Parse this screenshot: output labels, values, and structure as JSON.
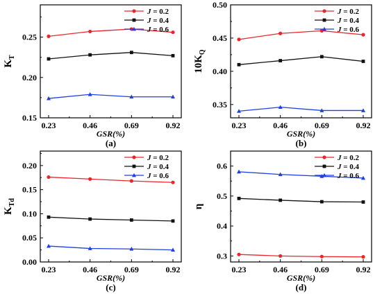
{
  "chart_data": [
    {
      "type": "line",
      "caption": "(a)",
      "ylabel_main": "K",
      "ylabel_sub": "T",
      "xlabel": "GSR(%)",
      "categories": [
        "0.23",
        "0.46",
        "0.69",
        "0.92"
      ],
      "ylim": [
        0.15,
        0.29
      ],
      "yticks": [
        0.15,
        0.2,
        0.25
      ],
      "ytick_labels": [
        "0.15",
        "0.20",
        "0.25"
      ],
      "legend_position": "top-right",
      "series": [
        {
          "name": "J = 0.2",
          "legend_var": "J",
          "legend_rest": " = 0.2",
          "color": "#e8262b",
          "marker": "circle",
          "values": [
            0.251,
            0.257,
            0.26,
            0.256
          ]
        },
        {
          "name": "J = 0.4",
          "legend_var": "J",
          "legend_rest": " = 0.4",
          "color": "#111111",
          "marker": "square",
          "values": [
            0.223,
            0.228,
            0.231,
            0.227
          ]
        },
        {
          "name": "J = 0.6",
          "legend_var": "J",
          "legend_rest": " = 0.6",
          "color": "#1f3fe0",
          "marker": "triangle",
          "values": [
            0.174,
            0.179,
            0.176,
            0.176
          ]
        }
      ]
    },
    {
      "type": "line",
      "caption": "(b)",
      "ylabel_main": "10K",
      "ylabel_sub": "Q",
      "xlabel": "GSR(%)",
      "categories": [
        "0.23",
        "0.46",
        "0.69",
        "0.92"
      ],
      "ylim": [
        0.33,
        0.5
      ],
      "yticks": [
        0.35,
        0.4,
        0.45,
        0.5
      ],
      "ytick_labels": [
        "0.35",
        "0.40",
        "0.45",
        "0.50"
      ],
      "legend_position": "top-right",
      "series": [
        {
          "name": "J = 0.2",
          "legend_var": "J",
          "legend_rest": " = 0.2",
          "color": "#e8262b",
          "marker": "circle",
          "values": [
            0.448,
            0.457,
            0.461,
            0.455
          ]
        },
        {
          "name": "J = 0.4",
          "legend_var": "J",
          "legend_rest": " = 0.4",
          "color": "#111111",
          "marker": "square",
          "values": [
            0.41,
            0.416,
            0.422,
            0.415
          ]
        },
        {
          "name": "J = 0.6",
          "legend_var": "J",
          "legend_rest": " = 0.6",
          "color": "#1f3fe0",
          "marker": "triangle",
          "values": [
            0.34,
            0.346,
            0.341,
            0.341
          ]
        }
      ]
    },
    {
      "type": "line",
      "caption": "(c)",
      "ylabel_main": "K",
      "ylabel_sub": "Td",
      "xlabel": "GSR(%)",
      "categories": [
        "0.23",
        "0.46",
        "0.69",
        "0.92"
      ],
      "ylim": [
        0.0,
        0.23
      ],
      "yticks": [
        0.0,
        0.05,
        0.1,
        0.15,
        0.2
      ],
      "ytick_labels": [
        "0.00",
        "0.05",
        "0.10",
        "0.15",
        "0.20"
      ],
      "legend_position": "top-right",
      "series": [
        {
          "name": "J = 0.2",
          "legend_var": "J",
          "legend_rest": " = 0.2",
          "color": "#e8262b",
          "marker": "circle",
          "values": [
            0.176,
            0.172,
            0.168,
            0.165
          ]
        },
        {
          "name": "J = 0.4",
          "legend_var": "J",
          "legend_rest": " = 0.4",
          "color": "#111111",
          "marker": "square",
          "values": [
            0.093,
            0.089,
            0.087,
            0.085
          ]
        },
        {
          "name": "J = 0.6",
          "legend_var": "J",
          "legend_rest": " = 0.6",
          "color": "#1f3fe0",
          "marker": "triangle",
          "values": [
            0.033,
            0.028,
            0.027,
            0.025
          ]
        }
      ]
    },
    {
      "type": "line",
      "caption": "(d)",
      "ylabel_main": "η",
      "ylabel_sub": "",
      "xlabel": "GSR(%)",
      "categories": [
        "0.23",
        "0.46",
        "0.69",
        "0.92"
      ],
      "ylim": [
        0.28,
        0.65
      ],
      "yticks": [
        0.3,
        0.4,
        0.5,
        0.6
      ],
      "ytick_labels": [
        "0.3",
        "0.4",
        "0.5",
        "0.6"
      ],
      "legend_position": "top-right",
      "series": [
        {
          "name": "J = 0.2",
          "legend_var": "J",
          "legend_rest": " = 0.2",
          "color": "#e8262b",
          "marker": "circle",
          "values": [
            0.305,
            0.3,
            0.298,
            0.297
          ]
        },
        {
          "name": "J = 0.4",
          "legend_var": "J",
          "legend_rest": " = 0.4",
          "color": "#111111",
          "marker": "square",
          "values": [
            0.492,
            0.486,
            0.481,
            0.48
          ]
        },
        {
          "name": "J = 0.6",
          "legend_var": "J",
          "legend_rest": " = 0.6",
          "color": "#1f3fe0",
          "marker": "triangle",
          "values": [
            0.581,
            0.572,
            0.566,
            0.56
          ]
        }
      ]
    }
  ]
}
